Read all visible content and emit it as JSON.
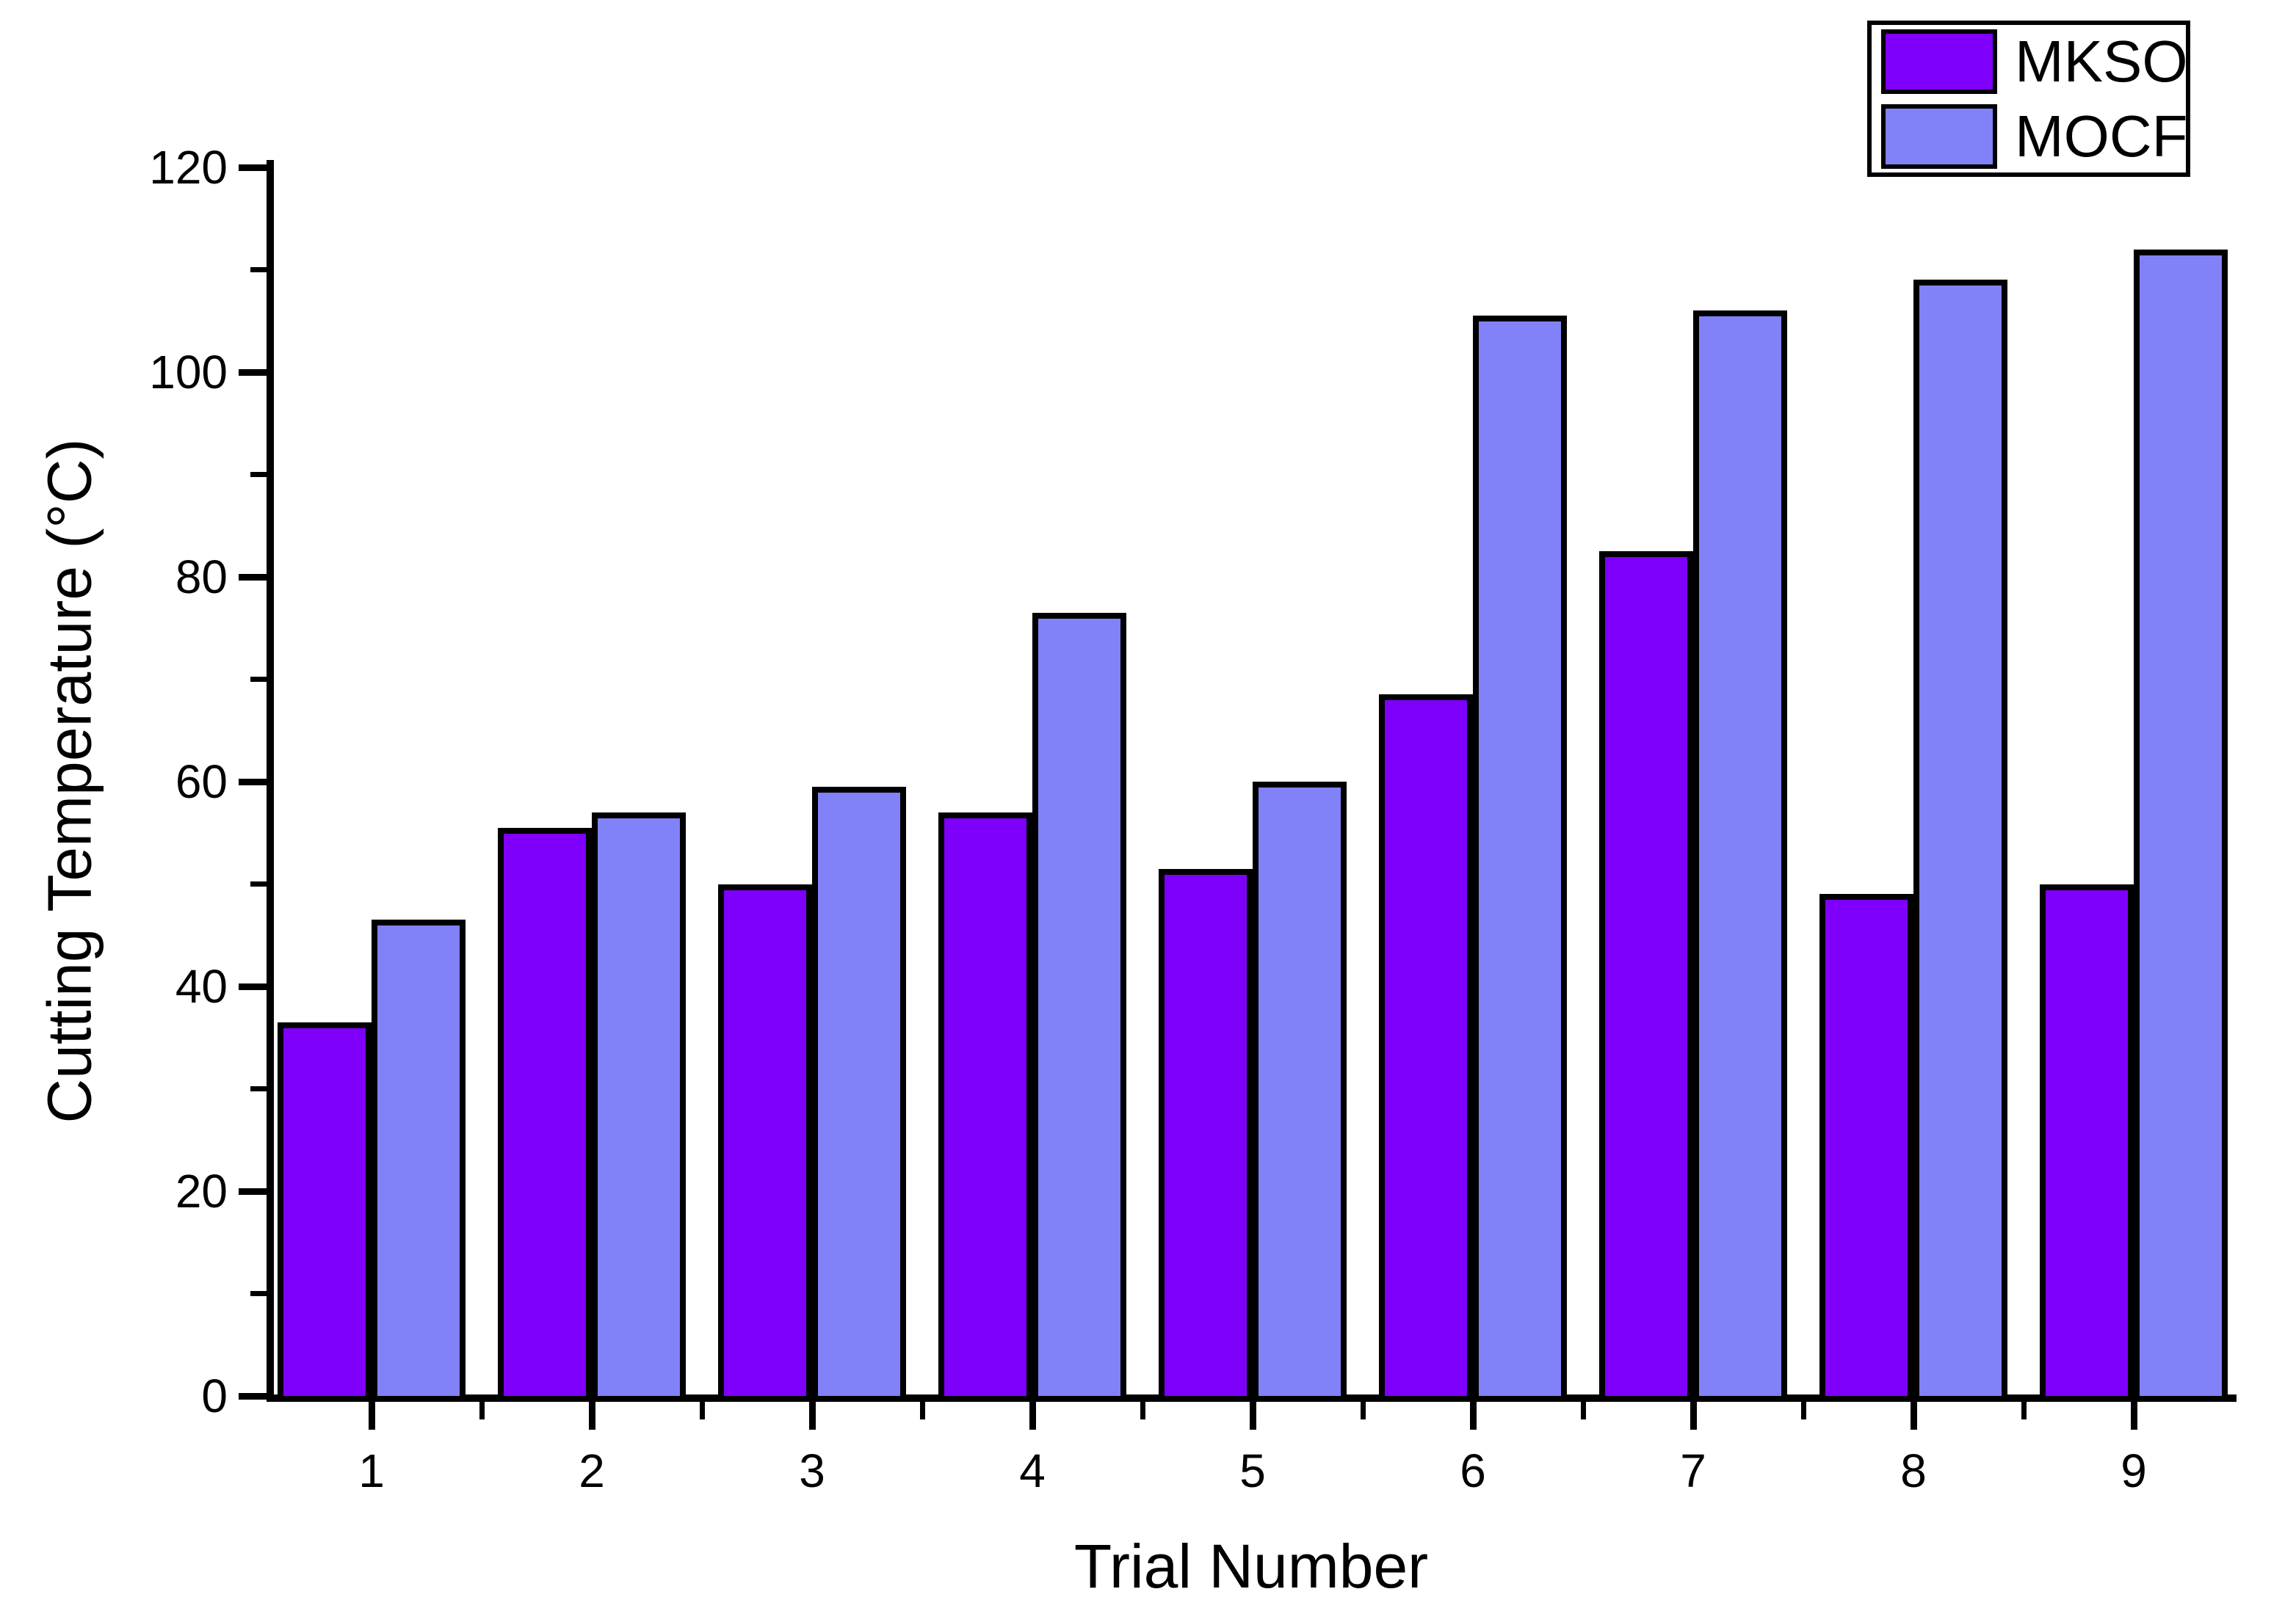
{
  "chart_data": {
    "type": "bar",
    "title": "",
    "categories": [
      "1",
      "2",
      "3",
      "4",
      "5",
      "6",
      "7",
      "8",
      "9"
    ],
    "series": [
      {
        "name": "MKSO",
        "color": "#7E00FB",
        "values": [
          36.5,
          55.5,
          50,
          57,
          51.5,
          68.5,
          82.5,
          49,
          50
        ]
      },
      {
        "name": "MOCF",
        "color": "#8181F8",
        "values": [
          46.5,
          57,
          59.5,
          76.5,
          60,
          105.5,
          106,
          109,
          112
        ]
      }
    ],
    "xlabel": "Trial Number",
    "ylabel": "Cutting Temperature (°C)",
    "ylim": [
      0,
      120
    ],
    "y_major_ticks": [
      0,
      20,
      40,
      60,
      80,
      100,
      120
    ],
    "y_minor_ticks": [
      10,
      30,
      50,
      70,
      90,
      110
    ],
    "grid": false,
    "legend_position": "top-right",
    "bar_outline_color": "#000000",
    "axis_color": "#000000",
    "background": "#FFFFFF"
  }
}
